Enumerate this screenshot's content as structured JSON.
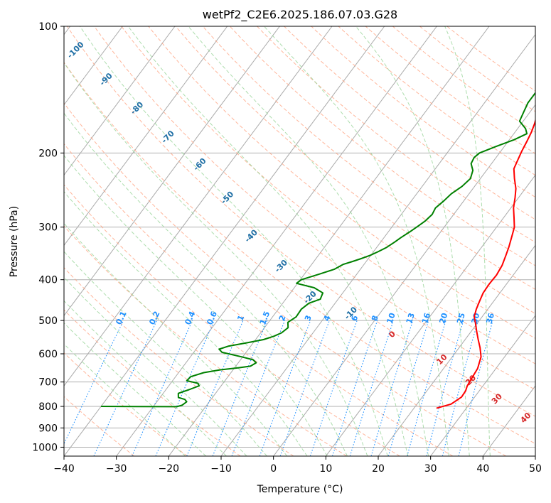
{
  "chart_data": {
    "type": "skewt",
    "title": "wetPf2_C2E6.2025.186.07.03.G28",
    "xlabel": "Temperature (°C)",
    "ylabel": "Pressure (hPa)",
    "xlim": [
      -40,
      50
    ],
    "ylim": [
      1050,
      100
    ],
    "y_scale": "log",
    "x_ticks": [
      "−40",
      "−30",
      "−20",
      "−10",
      "0",
      "10",
      "20",
      "30",
      "40",
      "50"
    ],
    "x_tick_values": [
      -40,
      -30,
      -20,
      -10,
      0,
      10,
      20,
      30,
      40,
      50
    ],
    "y_ticks": [
      "1000",
      "900",
      "800",
      "700",
      "600",
      "500",
      "400",
      "300",
      "200",
      "100"
    ],
    "y_tick_values": [
      1000,
      900,
      800,
      700,
      600,
      500,
      400,
      300,
      200,
      100
    ],
    "series": [
      {
        "type": "line",
        "color": "#ff0000",
        "points": [
          [
            24.3,
            808
          ],
          [
            26.5,
            790
          ],
          [
            27.5,
            760
          ],
          [
            27.4,
            735
          ],
          [
            27.0,
            715
          ],
          [
            26.8,
            690
          ],
          [
            26.5,
            650
          ],
          [
            25.5,
            610
          ],
          [
            24.0,
            580
          ],
          [
            22.5,
            555
          ],
          [
            21.0,
            530
          ],
          [
            19.5,
            505
          ],
          [
            18.5,
            490
          ],
          [
            17.8,
            470
          ],
          [
            17.3,
            450
          ],
          [
            16.8,
            430
          ],
          [
            16.7,
            410
          ],
          [
            16.8,
            390
          ],
          [
            16.5,
            370
          ],
          [
            15.8,
            350
          ],
          [
            15.2,
            335
          ],
          [
            14.2,
            315
          ],
          [
            13.4,
            300
          ],
          [
            12.0,
            285
          ],
          [
            10.5,
            270
          ],
          [
            9.3,
            255
          ],
          [
            8.2,
            243
          ],
          [
            6.5,
            230
          ],
          [
            5.0,
            218
          ],
          [
            4.5,
            208
          ],
          [
            4.0,
            198
          ],
          [
            3.6,
            188
          ],
          [
            3.1,
            178
          ],
          [
            2.5,
            170
          ],
          [
            1.5,
            160
          ],
          [
            0.5,
            152
          ],
          [
            -0.1,
            145
          ],
          [
            -0.6,
            138
          ],
          [
            -1.3,
            130
          ],
          [
            -1.6,
            124
          ],
          [
            -1.3,
            118
          ],
          [
            -0.8,
            113
          ],
          [
            0.0,
            108
          ],
          [
            1.5,
            103
          ],
          [
            2.7,
            100
          ]
        ]
      },
      {
        "type": "line",
        "color": "#008000",
        "points": [
          [
            -40,
            800
          ],
          [
            -33,
            800.5
          ],
          [
            -25.5,
            801
          ],
          [
            -24.7,
            795
          ],
          [
            -24.3,
            780
          ],
          [
            -25,
            770
          ],
          [
            -26.5,
            762
          ],
          [
            -27.1,
            745
          ],
          [
            -25.6,
            730
          ],
          [
            -24.2,
            715
          ],
          [
            -24.8,
            705
          ],
          [
            -27.3,
            695
          ],
          [
            -27.1,
            680
          ],
          [
            -25.2,
            665
          ],
          [
            -22.5,
            655
          ],
          [
            -19.3,
            648
          ],
          [
            -17.2,
            642
          ],
          [
            -16.6,
            630
          ],
          [
            -17.6,
            620
          ],
          [
            -20.2,
            610
          ],
          [
            -24.6,
            595
          ],
          [
            -25.6,
            585
          ],
          [
            -24.2,
            575
          ],
          [
            -21.2,
            565
          ],
          [
            -18.5,
            555
          ],
          [
            -17.0,
            545
          ],
          [
            -16.0,
            535
          ],
          [
            -15.5,
            520
          ],
          [
            -16.3,
            505
          ],
          [
            -15.5,
            490
          ],
          [
            -15.6,
            470
          ],
          [
            -15.0,
            455
          ],
          [
            -13.4,
            445
          ],
          [
            -13.8,
            430
          ],
          [
            -16.2,
            418
          ],
          [
            -20.2,
            408
          ],
          [
            -19.8,
            400
          ],
          [
            -17.2,
            388
          ],
          [
            -15.0,
            378
          ],
          [
            -14.0,
            368
          ],
          [
            -12.6,
            362
          ],
          [
            -11.3,
            356
          ],
          [
            -10.1,
            350
          ],
          [
            -9.1,
            343
          ],
          [
            -8.1,
            335
          ],
          [
            -7.3,
            325
          ],
          [
            -6.8,
            318
          ],
          [
            -5.9,
            308
          ],
          [
            -5.1,
            298
          ],
          [
            -4.5,
            290
          ],
          [
            -4.1,
            280
          ],
          [
            -4.4,
            270
          ],
          [
            -3.8,
            260
          ],
          [
            -3.4,
            250
          ],
          [
            -2.4,
            240
          ],
          [
            -1.9,
            230
          ],
          [
            -2.6,
            220
          ],
          [
            -3.9,
            212
          ],
          [
            -4.2,
            205
          ],
          [
            -3.8,
            200
          ],
          [
            -1.6,
            193
          ],
          [
            0.9,
            186
          ],
          [
            2.5,
            180
          ],
          [
            1.5,
            175
          ],
          [
            -0.7,
            168
          ],
          [
            -1.2,
            160
          ],
          [
            -1.7,
            152
          ],
          [
            -1.7,
            142
          ],
          [
            -1.4,
            132
          ],
          [
            -1.6,
            124
          ],
          [
            -1.1,
            116
          ],
          [
            -0.6,
            110
          ],
          [
            1.0,
            104
          ],
          [
            2.8,
            100
          ]
        ]
      }
    ],
    "mixing_ratio_labels": [
      "0.1",
      "0.2",
      "0.4",
      "0.6",
      "1",
      "1.5",
      "2",
      "3",
      "4",
      "6",
      "8",
      "10",
      "13",
      "16",
      "20",
      "25",
      "30",
      "36"
    ],
    "mixing_ratio_values": [
      0.1,
      0.2,
      0.4,
      0.6,
      1,
      1.5,
      2,
      3,
      4,
      6,
      8,
      10,
      13,
      16,
      20,
      25,
      30,
      36
    ],
    "dry_adiabat_labels": [
      "-100",
      "-90",
      "-80",
      "-70",
      "-60",
      "-50",
      "-40",
      "-30",
      "-20",
      "-10"
    ],
    "moist_adiabat_labels": [
      "0",
      "10",
      "20",
      "30",
      "40"
    ],
    "grid": true,
    "colors": {
      "temperature": "#ff0000",
      "dewpoint": "#008000",
      "isotherms": "#aaaaaa",
      "dry_adiabats": "#ff9d7a",
      "moist_adiabats": "#98d498",
      "mixing_ratio": "#1e90ff",
      "dry_label": "#1f6fa5",
      "moist_label": "#d62728"
    }
  }
}
